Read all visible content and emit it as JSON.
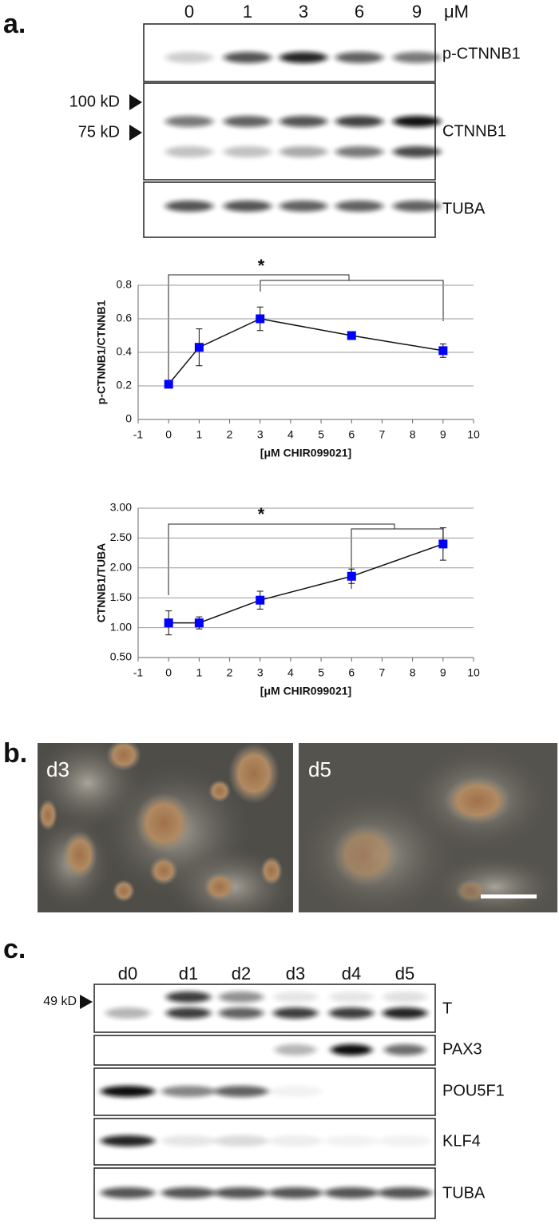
{
  "panel_a": {
    "label": "a.",
    "lanes": [
      "0",
      "1",
      "3",
      "6",
      "9"
    ],
    "unit": "μM",
    "blots": [
      "p-CTNNB1",
      "CTNNB1",
      "TUBA"
    ],
    "markers": [
      "100 kD",
      "75 kD"
    ]
  },
  "chart_data": [
    {
      "type": "line",
      "x_label": "[μM CHIR099021]",
      "y_label": "p-CTNNB1/CTNNB1",
      "x": [
        0,
        1,
        3,
        6,
        9
      ],
      "values": [
        0.21,
        0.43,
        0.6,
        0.5,
        0.41
      ],
      "errors": [
        0.02,
        0.11,
        0.07,
        0.01,
        0.04
      ],
      "color": "#0000ff",
      "xlim": [
        -1,
        10
      ],
      "xticks": [
        -1,
        0,
        1,
        2,
        3,
        4,
        5,
        6,
        7,
        8,
        9,
        10
      ],
      "ylim": [
        0,
        0.8
      ],
      "yticks": [
        0,
        0.2,
        0.4,
        0.6,
        0.8
      ],
      "grid": true,
      "annotations": [
        "*"
      ]
    },
    {
      "type": "line",
      "x_label": "[μM CHIR099021]",
      "y_label": "CTNNB1/TUBA",
      "x": [
        0,
        1,
        3,
        6,
        9
      ],
      "values": [
        1.08,
        1.08,
        1.46,
        1.86,
        2.4
      ],
      "errors": [
        0.2,
        0.1,
        0.15,
        0.12,
        0.27
      ],
      "color": "#0000ff",
      "xlim": [
        -1,
        10
      ],
      "xticks": [
        -1,
        0,
        1,
        2,
        3,
        4,
        5,
        6,
        7,
        8,
        9,
        10
      ],
      "ylim": [
        0.5,
        3
      ],
      "yticks": [
        {
          "value": 0.5,
          "label": "0.50"
        },
        {
          "value": 1,
          "label": "1.00"
        },
        {
          "value": 1.5,
          "label": "1.50"
        },
        {
          "value": 2,
          "label": "2.00"
        },
        {
          "value": 2.5,
          "label": "2.50"
        },
        {
          "value": 3,
          "label": "3.00"
        }
      ],
      "grid": true,
      "annotations": [
        "*"
      ]
    }
  ],
  "panel_b": {
    "label": "b.",
    "images": [
      "d3",
      "d5"
    ]
  },
  "panel_c": {
    "label": "c.",
    "lanes": [
      "d0",
      "d1",
      "d2",
      "d3",
      "d4",
      "d5"
    ],
    "blots": [
      "T",
      "PAX3",
      "POU5F1",
      "KLF4",
      "TUBA"
    ],
    "markers": [
      "49 kD"
    ]
  }
}
